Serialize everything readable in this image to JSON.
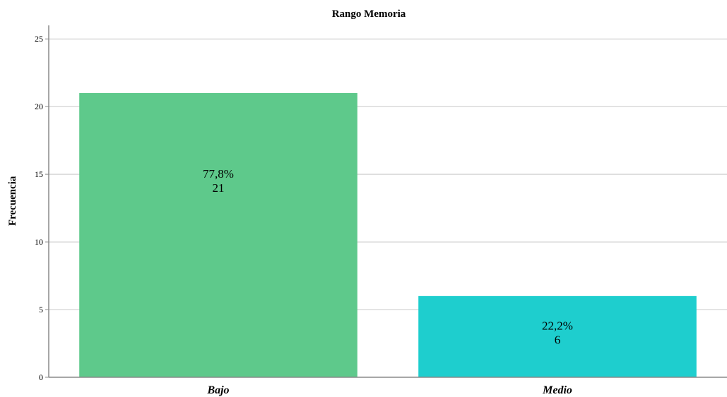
{
  "chart_data": {
    "type": "bar",
    "title": "Rango Memoria",
    "xlabel": "",
    "ylabel": "Frecuencia",
    "ylim": [
      0,
      26
    ],
    "yticks": [
      0,
      5,
      10,
      15,
      20,
      25
    ],
    "grid": true,
    "categories": [
      "Bajo",
      "Medio"
    ],
    "values": [
      21,
      6
    ],
    "percent_labels": [
      "77,8%",
      "22,2%"
    ],
    "count_labels": [
      "21",
      "6"
    ],
    "colors": [
      "#5ec98b",
      "#1ecece"
    ]
  }
}
